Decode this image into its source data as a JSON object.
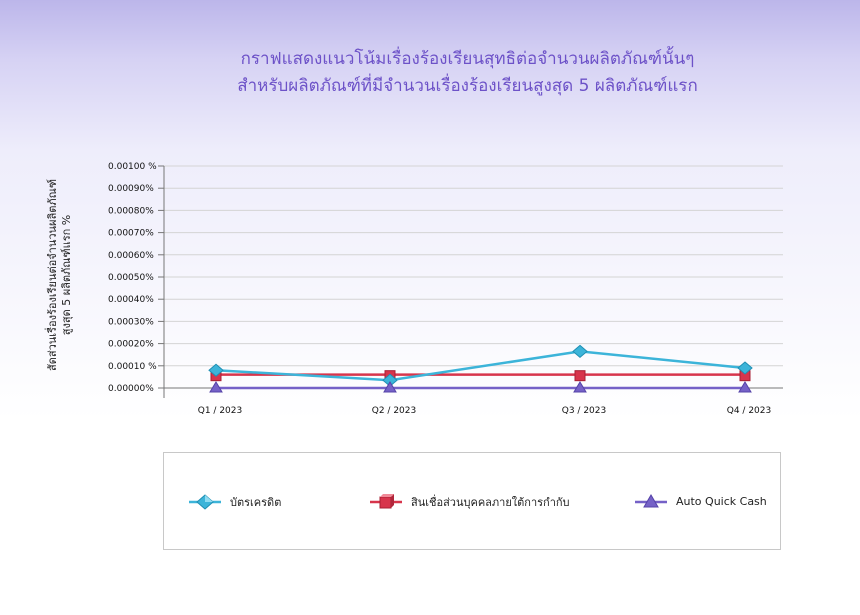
{
  "header": {
    "title_line1": "กราฟแสดงแนวโน้มเรื่องร้องเรียนสุทธิต่อจำนวนผลิตภัณฑ์นั้นๆ",
    "title_line2": "สำหรับผลิตภัณฑ์ที่มีจำนวนเรื่องร้องเรียนสูงสุด 5 ผลิตภัณฑ์แรก"
  },
  "chart_data": {
    "type": "line",
    "ylabel_line1": "สัดส่วนเรื่องร้องเรียนต่อจำนวนผลิตภัณฑ์",
    "ylabel_line2": "สูงสุด 5 ผลิตภัณฑ์แรก   %",
    "categories": [
      "Q1 / 2023",
      "Q2 / 2023",
      "Q3 / 2023",
      "Q4 / 2023"
    ],
    "y_ticks": [
      "0.00000%",
      "0.00010 %",
      "0.00020%",
      "0.00030%",
      "0.00040%",
      "0.00050%",
      "0.00060%",
      "0.00070%",
      "0.00080%",
      "0.00090%",
      "0.00100 %"
    ],
    "ylim": [
      0,
      0.001
    ],
    "grid": true,
    "legend_position": "bottom",
    "series": [
      {
        "name": "บัตรเครดิต",
        "values": [
          8e-05,
          3.5e-05,
          0.000165,
          9e-05
        ],
        "color": "#3cb4d9",
        "marker": "diamond"
      },
      {
        "name": "สินเชื่อส่วนบุคคลภายใต้การกำกับ",
        "values": [
          6e-05,
          6e-05,
          6e-05,
          6e-05
        ],
        "color": "#d7354c",
        "marker": "cube"
      },
      {
        "name": "Auto Quick Cash",
        "values": [
          0,
          0,
          0,
          0
        ],
        "color": "#7561c7",
        "marker": "triangle"
      }
    ]
  }
}
